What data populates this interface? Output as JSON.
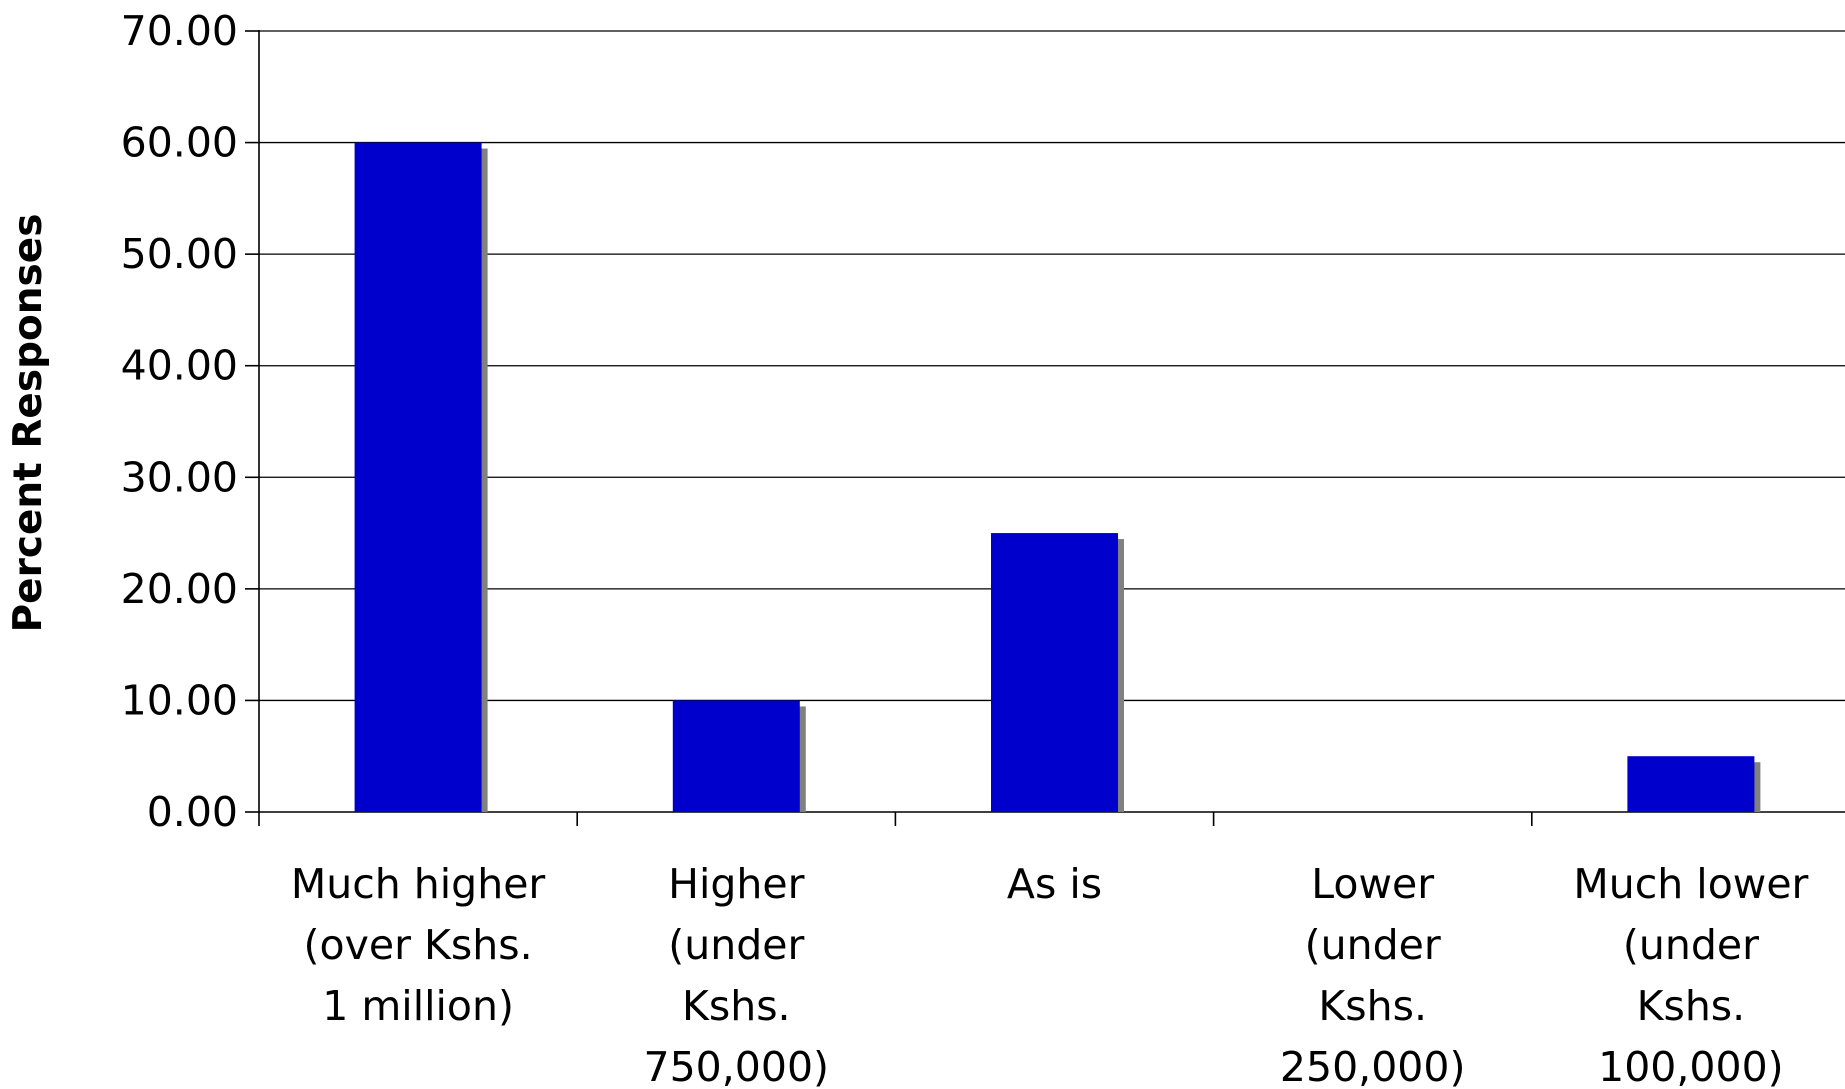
{
  "chart_data": {
    "type": "bar",
    "title": "",
    "xlabel": "",
    "ylabel": "Percent Responses",
    "ylim": [
      0,
      70
    ],
    "yticks": [
      "0.00",
      "10.00",
      "20.00",
      "30.00",
      "40.00",
      "50.00",
      "60.00",
      "70.00"
    ],
    "categories": [
      [
        "Much higher",
        "(over Kshs.",
        "1 million)"
      ],
      [
        "Higher",
        "(under",
        "Kshs.",
        "750,000)"
      ],
      [
        "As is"
      ],
      [
        "Lower",
        "(under",
        "Kshs.",
        "250,000)"
      ],
      [
        "Much lower",
        "(under",
        "Kshs.",
        "100,000)"
      ]
    ],
    "values": [
      60,
      10,
      25,
      0,
      5
    ],
    "grid": true,
    "legend": "none",
    "colors": {
      "bar": "#0000cc",
      "bar_shadow": "#808080",
      "grid": "#000000"
    }
  }
}
